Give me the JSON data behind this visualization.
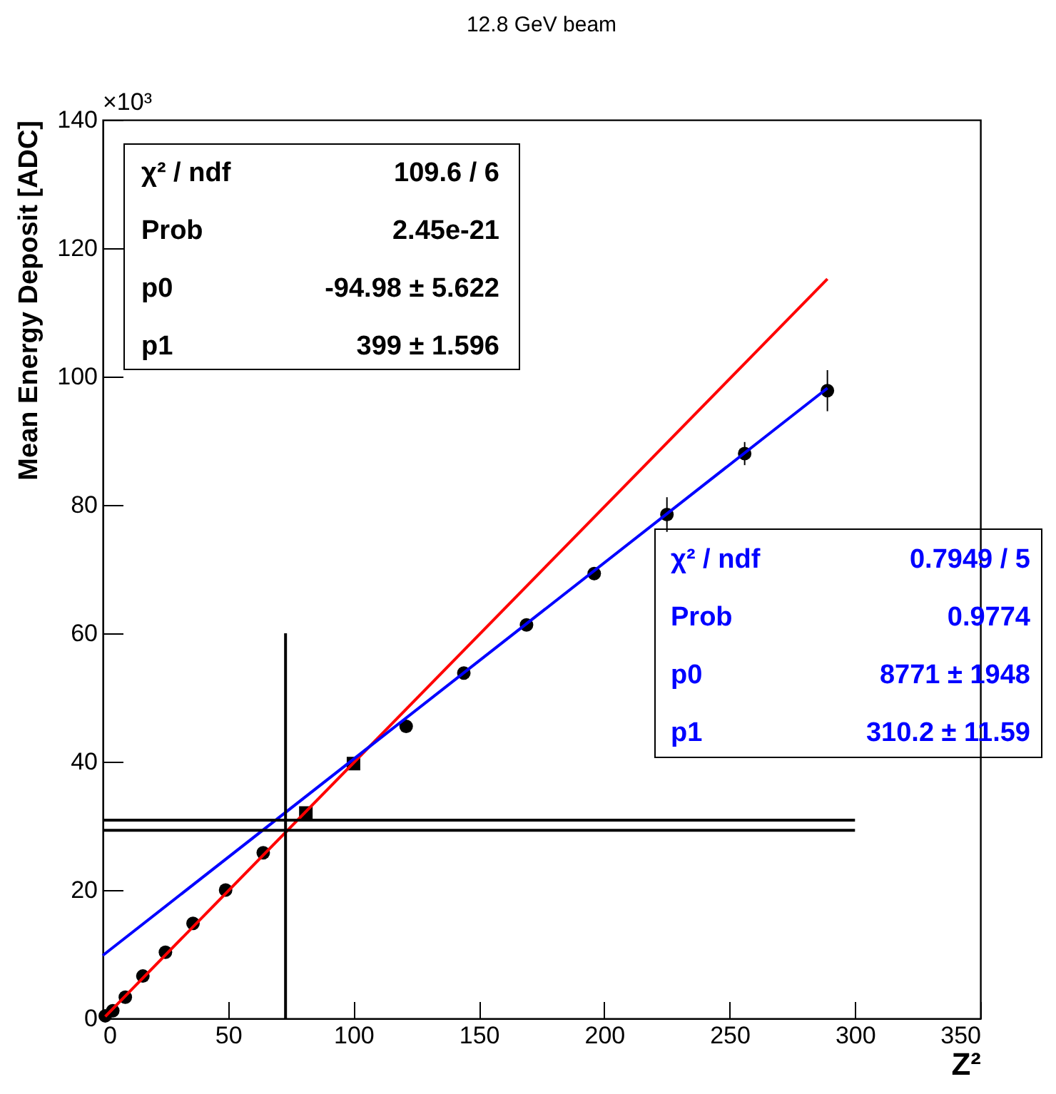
{
  "chart_data": {
    "type": "scatter",
    "title": "12.8 GeV beam",
    "xlabel": "Z²",
    "ylabel": "Mean Energy Deposit [ADC]",
    "xlim": [
      0,
      350
    ],
    "xticks": [
      0,
      50,
      100,
      150,
      200,
      250,
      300,
      350
    ],
    "ylim": [
      0,
      140
    ],
    "yticks": [
      0,
      20,
      40,
      60,
      80,
      100,
      120,
      140
    ],
    "grid": false,
    "series": [
      {
        "type": "line",
        "color": "#ff0000",
        "x": [
          1,
          289
        ],
        "values": [
          0.3,
          115.2
        ]
      },
      {
        "type": "line",
        "color": "#0000ff",
        "x": [
          0,
          289
        ],
        "values": [
          9.8,
          98.2
        ]
      },
      {
        "type": "line",
        "color": "#000000",
        "x": [
          72.9,
          72.9
        ],
        "values": [
          0,
          60
        ]
      },
      {
        "type": "line",
        "color": "#000000",
        "x": [
          0,
          300
        ],
        "values": [
          30.9,
          30.9
        ]
      },
      {
        "type": "line",
        "color": "#000000",
        "x": [
          0,
          300
        ],
        "values": [
          29.3,
          29.3
        ]
      },
      {
        "color": "#000000",
        "marker": "circle",
        "x": [
          1,
          4,
          9,
          16,
          25,
          36,
          49,
          64,
          121,
          144,
          169,
          196,
          225,
          256,
          289
        ],
        "values": [
          0.4,
          1.2,
          3.3,
          6.6,
          10.3,
          14.8,
          20,
          25.8,
          45.5,
          53.8,
          61.3,
          69.3,
          78.5,
          88,
          97.8
        ],
        "errors": [
          null,
          null,
          null,
          null,
          null,
          null,
          null,
          null,
          null,
          null,
          null,
          1,
          2.7,
          1.8,
          3.2
        ]
      },
      {
        "color": "#000000",
        "marker": "square",
        "x": [
          81,
          100
        ],
        "values": [
          32,
          39.7
        ]
      }
    ],
    "annotations": [
      "×10³",
      "χ² / ndf",
      "109.6 / 6",
      "Prob",
      "2.45e-21",
      "p0",
      "-94.98 ± 5.622",
      "p1",
      "399 ± 1.596",
      "χ² / ndf",
      "0.7949 / 5",
      "Prob",
      "0.9774",
      "p0",
      "8771 ±  1948",
      "p1",
      "310.2 ± 11.59"
    ]
  }
}
